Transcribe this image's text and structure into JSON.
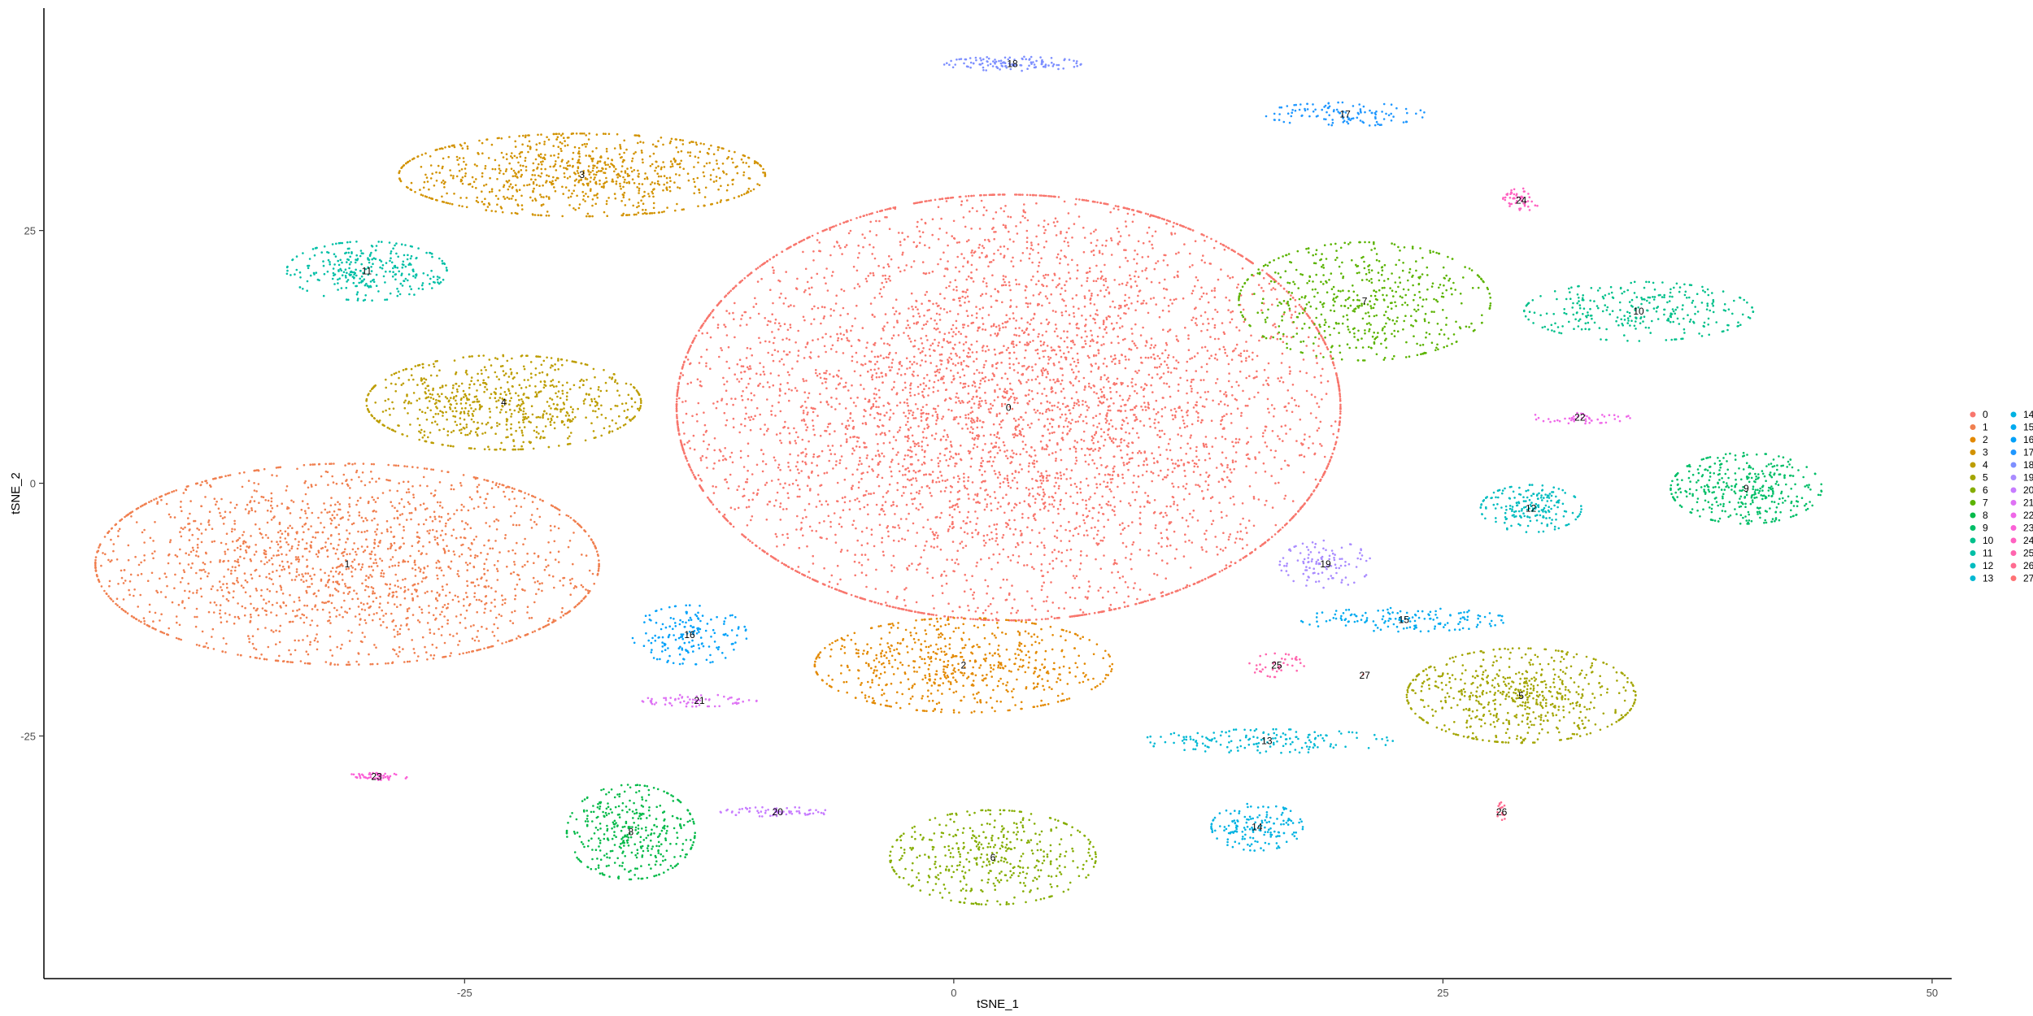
{
  "chart_data": {
    "type": "scatter",
    "title": "",
    "xlabel": "tSNE_1",
    "ylabel": "tSNE_2",
    "xlim": [
      -46.5,
      51
    ],
    "ylim": [
      -49,
      47
    ],
    "xticks": [
      -25,
      0,
      25,
      50
    ],
    "yticks": [
      -25,
      0,
      25
    ],
    "grid": false,
    "legend": "right",
    "colors": [
      "#F8766D",
      "#F07F4F",
      "#E38900",
      "#D29200",
      "#BD9D00",
      "#A3A500",
      "#85AD00",
      "#5BB300",
      "#06BA4A",
      "#00BE67",
      "#00C08B",
      "#00BFA6",
      "#00BCBF",
      "#00B8D3",
      "#00B2E2",
      "#00AAEF",
      "#00A1F9",
      "#1F97FF",
      "#7D8FFF",
      "#A98BFF",
      "#C77CFF",
      "#DE72F4",
      "#EF67E8",
      "#FB61D7",
      "#FF62C1",
      "#FF65AE",
      "#FF6C91",
      "#FF7275"
    ],
    "clusters": [
      {
        "label": "0",
        "cx": 2.8,
        "cy": 7.5,
        "n": 5200,
        "sx": 14.5,
        "sy": 18
      },
      {
        "label": "1",
        "cx": -31,
        "cy": -8,
        "n": 1900,
        "sx": 11,
        "sy": 8.5
      },
      {
        "label": "2",
        "cx": 0.5,
        "cy": -18,
        "n": 650,
        "sx": 6.5,
        "sy": 4
      },
      {
        "label": "3",
        "cx": -19,
        "cy": 30.5,
        "n": 900,
        "sx": 8,
        "sy": 3.5
      },
      {
        "label": "4",
        "cx": -23,
        "cy": 8,
        "n": 750,
        "sx": 6,
        "sy": 4
      },
      {
        "label": "5",
        "cx": 29,
        "cy": -21,
        "n": 650,
        "sx": 5,
        "sy": 4
      },
      {
        "label": "6",
        "cx": 2,
        "cy": -37,
        "n": 450,
        "sx": 4.5,
        "sy": 4
      },
      {
        "label": "7",
        "cx": 21,
        "cy": 18,
        "n": 550,
        "sx": 5.5,
        "sy": 5
      },
      {
        "label": "8",
        "cx": -16.5,
        "cy": -34.5,
        "n": 380,
        "sx": 2.8,
        "sy": 4
      },
      {
        "label": "9",
        "cx": 40.5,
        "cy": -0.5,
        "n": 380,
        "sx": 3.3,
        "sy": 3
      },
      {
        "label": "10",
        "cx": 35,
        "cy": 17,
        "n": 300,
        "sx": 5,
        "sy": 2.5
      },
      {
        "label": "11",
        "cx": -30,
        "cy": 21,
        "n": 300,
        "sx": 3.5,
        "sy": 2.5
      },
      {
        "label": "12",
        "cx": 29.5,
        "cy": -2.5,
        "n": 200,
        "sx": 2.2,
        "sy": 2
      },
      {
        "label": "13",
        "cx": 16,
        "cy": -25.5,
        "n": 160,
        "sx": 5.5,
        "sy": 1
      },
      {
        "label": "14",
        "cx": 15.5,
        "cy": -34,
        "n": 160,
        "sx": 2,
        "sy": 2
      },
      {
        "label": "15",
        "cx": 23,
        "cy": -13.5,
        "n": 150,
        "sx": 4.5,
        "sy": 1
      },
      {
        "label": "16",
        "cx": -13.5,
        "cy": -15,
        "n": 170,
        "sx": 2.5,
        "sy": 2.5
      },
      {
        "label": "17",
        "cx": 20,
        "cy": 36.5,
        "n": 120,
        "sx": 3.5,
        "sy": 1
      },
      {
        "label": "18",
        "cx": 3,
        "cy": 41.5,
        "n": 120,
        "sx": 3,
        "sy": 0.6
      },
      {
        "label": "19",
        "cx": 19,
        "cy": -8,
        "n": 110,
        "sx": 2,
        "sy": 2
      },
      {
        "label": "20",
        "cx": -9,
        "cy": -32.5,
        "n": 70,
        "sx": 2.5,
        "sy": 0.4
      },
      {
        "label": "21",
        "cx": -13,
        "cy": -21.5,
        "n": 70,
        "sx": 2.5,
        "sy": 0.5
      },
      {
        "label": "22",
        "cx": 32,
        "cy": 6.5,
        "n": 50,
        "sx": 2.2,
        "sy": 0.5
      },
      {
        "label": "23",
        "cx": -29.5,
        "cy": -29,
        "n": 50,
        "sx": 1.5,
        "sy": 0.3
      },
      {
        "label": "24",
        "cx": 29,
        "cy": 28,
        "n": 50,
        "sx": 0.8,
        "sy": 1
      },
      {
        "label": "25",
        "cx": 16.5,
        "cy": -18,
        "n": 40,
        "sx": 1.2,
        "sy": 1
      },
      {
        "label": "26",
        "cx": 28,
        "cy": -32.5,
        "n": 15,
        "sx": 0.2,
        "sy": 0.8
      },
      {
        "label": "27",
        "cx": 21,
        "cy": -19,
        "n": 1,
        "sx": 0.1,
        "sy": 0.1
      }
    ]
  }
}
